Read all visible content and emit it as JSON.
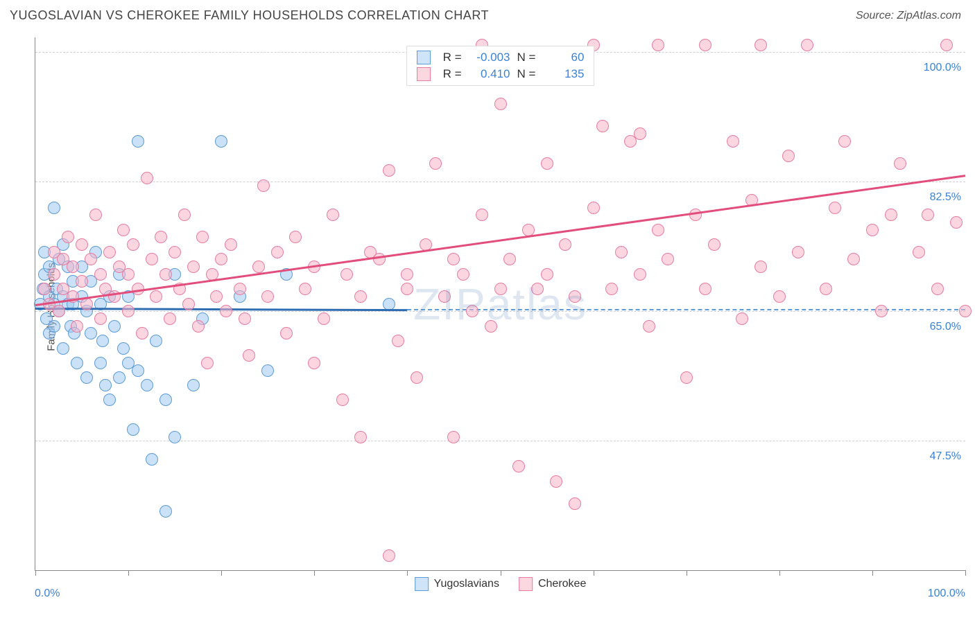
{
  "header": {
    "title": "YUGOSLAVIAN VS CHEROKEE FAMILY HOUSEHOLDS CORRELATION CHART",
    "source": "Source: ZipAtlas.com"
  },
  "chart": {
    "type": "scatter",
    "ylabel": "Family Households",
    "xlim": [
      0,
      100
    ],
    "ylim": [
      30,
      102
    ],
    "watermark": "ZIPatlas",
    "background_color": "#ffffff",
    "grid_color": "#cfcfcf",
    "axis_color": "#888888",
    "marker_radius": 9,
    "marker_stroke_width": 1.5,
    "gridlines_y": [
      {
        "value": 100.0,
        "label": "100.0%"
      },
      {
        "value": 82.5,
        "label": "82.5%"
      },
      {
        "value": 65.0,
        "label": "65.0%"
      },
      {
        "value": 47.5,
        "label": "47.5%"
      }
    ],
    "xticks": [
      0,
      10,
      20,
      30,
      40,
      50,
      60,
      70,
      80,
      90,
      100
    ],
    "xaxis_labels": {
      "left": "0.0%",
      "right": "100.0%"
    },
    "legend_top": [
      {
        "swatch_fill": "#cfe3f9",
        "swatch_stroke": "#5a9bd8",
        "r_label": "R =",
        "r_value": "-0.003",
        "n_label": "N =",
        "n_value": "60"
      },
      {
        "swatch_fill": "#fbd7e0",
        "swatch_stroke": "#e87ba0",
        "r_label": "R =",
        "r_value": "0.410",
        "n_label": "N =",
        "n_value": "135"
      }
    ],
    "legend_bottom": [
      {
        "swatch_fill": "#cfe3f9",
        "swatch_stroke": "#5a9bd8",
        "label": "Yugoslavians"
      },
      {
        "swatch_fill": "#fbd7e0",
        "swatch_stroke": "#e87ba0",
        "label": "Cherokee"
      }
    ],
    "series": [
      {
        "name": "Yugoslavians",
        "fill": "rgba(160,200,240,0.55)",
        "stroke": "#5a9bd8",
        "trend": {
          "x1": 0,
          "y1": 65.5,
          "x2": 40,
          "y2": 65.3,
          "color": "#2f6db3",
          "dash_from_x": 40,
          "dash_to_x": 100
        },
        "points": [
          [
            0.5,
            66
          ],
          [
            0.8,
            68
          ],
          [
            1,
            70
          ],
          [
            1,
            73
          ],
          [
            1.2,
            64
          ],
          [
            1.5,
            62
          ],
          [
            1.5,
            67
          ],
          [
            1.5,
            71
          ],
          [
            2,
            79
          ],
          [
            2,
            66
          ],
          [
            2,
            63
          ],
          [
            2.3,
            68
          ],
          [
            2.5,
            72
          ],
          [
            2.5,
            65
          ],
          [
            3,
            60
          ],
          [
            3,
            67
          ],
          [
            3,
            74
          ],
          [
            3.5,
            66
          ],
          [
            3.5,
            71
          ],
          [
            3.8,
            63
          ],
          [
            4,
            69
          ],
          [
            4,
            66
          ],
          [
            4.2,
            62
          ],
          [
            4.5,
            58
          ],
          [
            5,
            67
          ],
          [
            5,
            71
          ],
          [
            5.5,
            65
          ],
          [
            5.5,
            56
          ],
          [
            6,
            62
          ],
          [
            6,
            69
          ],
          [
            6.5,
            73
          ],
          [
            7,
            58
          ],
          [
            7,
            66
          ],
          [
            7.2,
            61
          ],
          [
            7.5,
            55
          ],
          [
            8,
            53
          ],
          [
            8,
            67
          ],
          [
            8.5,
            63
          ],
          [
            9,
            56
          ],
          [
            9,
            70
          ],
          [
            9.5,
            60
          ],
          [
            10,
            58
          ],
          [
            10,
            67
          ],
          [
            10.5,
            49
          ],
          [
            11,
            88
          ],
          [
            11,
            57
          ],
          [
            12,
            55
          ],
          [
            12.5,
            45
          ],
          [
            13,
            61
          ],
          [
            14,
            53
          ],
          [
            14,
            38
          ],
          [
            15,
            70
          ],
          [
            15,
            48
          ],
          [
            17,
            55
          ],
          [
            18,
            64
          ],
          [
            20,
            88
          ],
          [
            22,
            67
          ],
          [
            25,
            57
          ],
          [
            27,
            70
          ],
          [
            38,
            66
          ]
        ]
      },
      {
        "name": "Cherokee",
        "fill": "rgba(248,180,200,0.55)",
        "stroke": "#e87ba0",
        "trend": {
          "x1": 0,
          "y1": 66,
          "x2": 100,
          "y2": 83.5,
          "color": "#e24d7c"
        },
        "points": [
          [
            1,
            68
          ],
          [
            1.5,
            66
          ],
          [
            2,
            70
          ],
          [
            2,
            73
          ],
          [
            2.5,
            65
          ],
          [
            3,
            72
          ],
          [
            3,
            68
          ],
          [
            3.5,
            75
          ],
          [
            4,
            67
          ],
          [
            4,
            71
          ],
          [
            4.5,
            63
          ],
          [
            5,
            74
          ],
          [
            5,
            69
          ],
          [
            5.5,
            66
          ],
          [
            6,
            72
          ],
          [
            6.5,
            78
          ],
          [
            7,
            70
          ],
          [
            7,
            64
          ],
          [
            7.5,
            68
          ],
          [
            8,
            73
          ],
          [
            8.5,
            67
          ],
          [
            9,
            71
          ],
          [
            9.5,
            76
          ],
          [
            10,
            65
          ],
          [
            10,
            70
          ],
          [
            10.5,
            74
          ],
          [
            11,
            68
          ],
          [
            11.5,
            62
          ],
          [
            12,
            83
          ],
          [
            12.5,
            72
          ],
          [
            13,
            67
          ],
          [
            13.5,
            75
          ],
          [
            14,
            70
          ],
          [
            14.5,
            64
          ],
          [
            15,
            73
          ],
          [
            15.5,
            68
          ],
          [
            16,
            78
          ],
          [
            16.5,
            66
          ],
          [
            17,
            71
          ],
          [
            17.5,
            63
          ],
          [
            18,
            75
          ],
          [
            18.5,
            58
          ],
          [
            19,
            70
          ],
          [
            19.5,
            67
          ],
          [
            20,
            72
          ],
          [
            20.5,
            65
          ],
          [
            21,
            74
          ],
          [
            22,
            68
          ],
          [
            22.5,
            64
          ],
          [
            23,
            59
          ],
          [
            24,
            71
          ],
          [
            24.5,
            82
          ],
          [
            25,
            67
          ],
          [
            26,
            73
          ],
          [
            27,
            62
          ],
          [
            28,
            75
          ],
          [
            29,
            68
          ],
          [
            30,
            71
          ],
          [
            30,
            58
          ],
          [
            31,
            64
          ],
          [
            32,
            78
          ],
          [
            33,
            53
          ],
          [
            33.5,
            70
          ],
          [
            35,
            67
          ],
          [
            35,
            48
          ],
          [
            36,
            73
          ],
          [
            37,
            72
          ],
          [
            38,
            32
          ],
          [
            38,
            84
          ],
          [
            39,
            61
          ],
          [
            40,
            70
          ],
          [
            40,
            68
          ],
          [
            41,
            56
          ],
          [
            42,
            74
          ],
          [
            43,
            85
          ],
          [
            44,
            67
          ],
          [
            45,
            72
          ],
          [
            45,
            48
          ],
          [
            46,
            70
          ],
          [
            47,
            65
          ],
          [
            48,
            101
          ],
          [
            48,
            78
          ],
          [
            49,
            63
          ],
          [
            50,
            68
          ],
          [
            50,
            93
          ],
          [
            51,
            72
          ],
          [
            52,
            44
          ],
          [
            53,
            76
          ],
          [
            54,
            68
          ],
          [
            55,
            85
          ],
          [
            55,
            70
          ],
          [
            56,
            42
          ],
          [
            57,
            74
          ],
          [
            58,
            67
          ],
          [
            58,
            39
          ],
          [
            60,
            79
          ],
          [
            60,
            101
          ],
          [
            61,
            90
          ],
          [
            62,
            68
          ],
          [
            63,
            73
          ],
          [
            64,
            88
          ],
          [
            65,
            70
          ],
          [
            65,
            89
          ],
          [
            66,
            63
          ],
          [
            67,
            76
          ],
          [
            67,
            101
          ],
          [
            68,
            72
          ],
          [
            70,
            56
          ],
          [
            71,
            78
          ],
          [
            72,
            68
          ],
          [
            72,
            101
          ],
          [
            73,
            74
          ],
          [
            75,
            88
          ],
          [
            76,
            64
          ],
          [
            77,
            80
          ],
          [
            78,
            71
          ],
          [
            78,
            101
          ],
          [
            80,
            67
          ],
          [
            81,
            86
          ],
          [
            82,
            73
          ],
          [
            83,
            101
          ],
          [
            85,
            68
          ],
          [
            86,
            79
          ],
          [
            87,
            88
          ],
          [
            88,
            72
          ],
          [
            90,
            76
          ],
          [
            91,
            65
          ],
          [
            92,
            78
          ],
          [
            93,
            85
          ],
          [
            95,
            73
          ],
          [
            96,
            78
          ],
          [
            97,
            68
          ],
          [
            98,
            101
          ],
          [
            99,
            77
          ],
          [
            100,
            65
          ]
        ]
      }
    ]
  }
}
